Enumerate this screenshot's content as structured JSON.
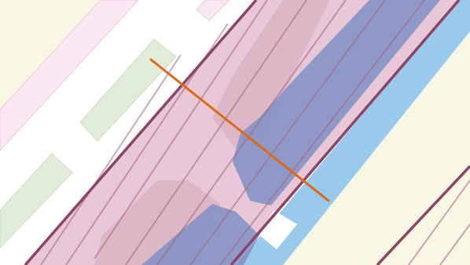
{
  "map": {
    "colors": {
      "background": "#ffffff",
      "residential": "#f7f7e3",
      "pink_zone": "#fbe8f2",
      "pink_zone_edge": "#f1c7dc",
      "green_area": "#e0ecd8",
      "green_area_edge": "#cfdec4",
      "rail_corridor": "#e5c1d2",
      "rail_corridor_inner": "#dcb4c4",
      "corridor_border": "#8b4368",
      "hatch_line": "#a9607f",
      "water": "#99c9eb",
      "blue_overlay": "#7f90c6",
      "measure_line": "#db6a13"
    },
    "icons": [
      "measure-line-icon"
    ]
  }
}
